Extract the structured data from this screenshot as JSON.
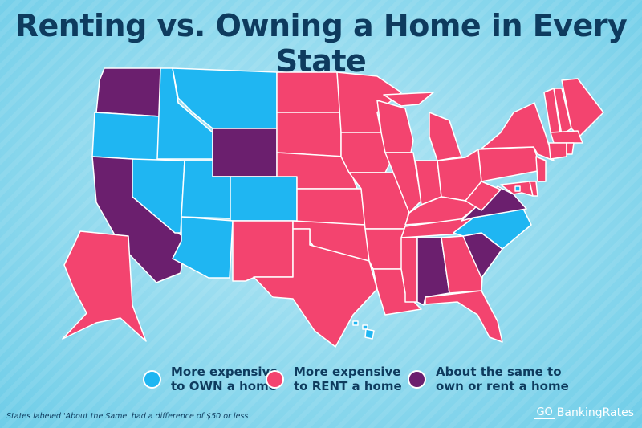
{
  "title": "Renting vs. Owning a Home in Every State",
  "colors": {
    "own": "#1fb6f2",
    "rent": "#f3446f",
    "same": "#6b1f6e",
    "title": "#0e3b5e"
  },
  "legend": [
    {
      "key": "own",
      "line1": "More expensive",
      "line2": "to OWN a home"
    },
    {
      "key": "rent",
      "line1": "More expensive",
      "line2": "to RENT a home"
    },
    {
      "key": "same",
      "line1": "About the same to",
      "line2": "own or rent a home"
    }
  ],
  "state_category": {
    "WA": "same",
    "OR": "own",
    "CA": "same",
    "ID": "own",
    "MT": "own",
    "WY": "same",
    "NV": "own",
    "UT": "own",
    "CO": "own",
    "AZ": "own",
    "NM": "rent",
    "ND": "rent",
    "SD": "rent",
    "NE": "rent",
    "KS": "rent",
    "OK": "rent",
    "TX": "rent",
    "MN": "rent",
    "IA": "rent",
    "MO": "rent",
    "AR": "rent",
    "LA": "rent",
    "WI": "rent",
    "IL": "rent",
    "MI": "rent",
    "IN": "rent",
    "OH": "rent",
    "KY": "rent",
    "TN": "rent",
    "MS": "rent",
    "AL": "same",
    "GA": "rent",
    "FL": "rent",
    "SC": "same",
    "NC": "own",
    "VA": "same",
    "WV": "rent",
    "PA": "rent",
    "NY": "rent",
    "NJ": "rent",
    "DE": "rent",
    "MD": "rent",
    "DC": "own",
    "CT": "rent",
    "RI": "rent",
    "MA": "rent",
    "VT": "rent",
    "NH": "rent",
    "ME": "rent",
    "AK": "rent",
    "HI": "own"
  },
  "footnote": "States labeled 'About the Same' had a difference of $50 or less",
  "logo": {
    "go": "GO",
    "name": "BankingRates"
  }
}
